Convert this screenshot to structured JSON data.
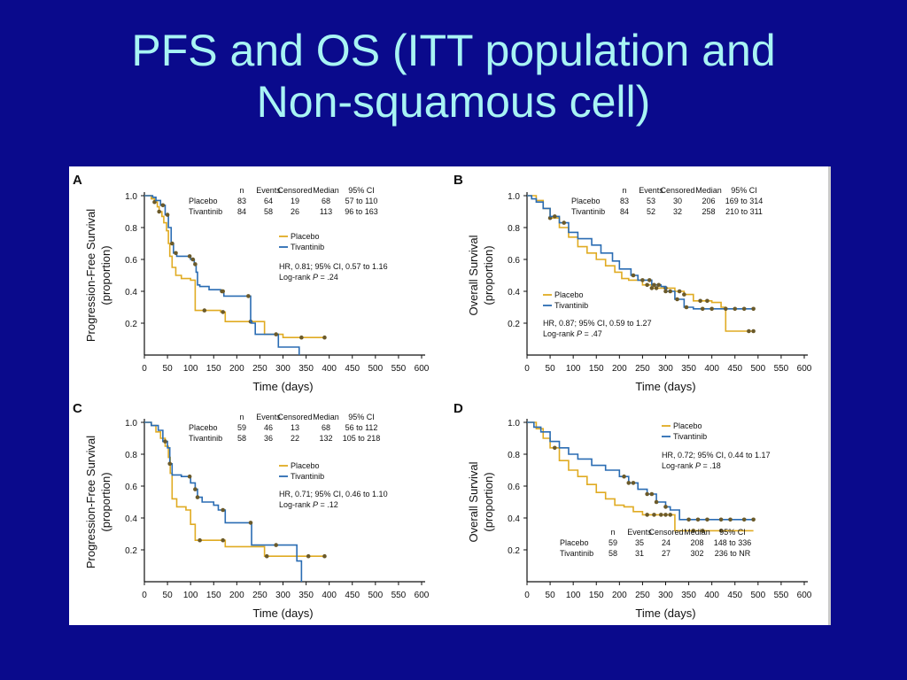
{
  "slide": {
    "title_line1": "PFS and OS (ITT population and",
    "title_line2": "Non-squamous cell)"
  },
  "colors": {
    "placebo": "#e0ab22",
    "tivantinib": "#2a6cb3",
    "censor": "#6b5a2a",
    "background": "#0a0a8c",
    "title": "#a8f4f4"
  },
  "chart_data": [
    {
      "panel": "A",
      "type": "line",
      "xlabel": "Time (days)",
      "ylabel_line1": "Progression-Free Survival",
      "ylabel_line2": "(proportion)",
      "xlim": [
        0,
        600
      ],
      "ylim": [
        0,
        1.0
      ],
      "xticks": [
        "0",
        "50",
        "100",
        "150",
        "200",
        "250",
        "300",
        "350",
        "400",
        "450",
        "500",
        "550",
        "600"
      ],
      "yticks": [
        "0.2",
        "0.4",
        "0.6",
        "0.8",
        "1.0"
      ],
      "table": {
        "columns": [
          "n",
          "Events",
          "Censored",
          "Median",
          "95% CI"
        ],
        "rows": [
          {
            "arm": "Placebo",
            "cells": [
              "83",
              "64",
              "19",
              "68",
              "57 to 110"
            ]
          },
          {
            "arm": "Tivantinib",
            "cells": [
              "84",
              "58",
              "26",
              "113",
              "96 to 163"
            ]
          }
        ]
      },
      "legend": [
        "Placebo",
        "Tivantinib"
      ],
      "hr_line": "HR, 0.81; 95% CI, 0.57 to 1.16",
      "p_prefix": "Log-rank ",
      "p_italic": "P",
      "p_suffix": " = .24",
      "series": [
        {
          "name": "Placebo",
          "color": "#e0ab22",
          "x": [
            0,
            15,
            22,
            28,
            32,
            38,
            42,
            48,
            52,
            55,
            60,
            68,
            80,
            100,
            110,
            130,
            165,
            175,
            215,
            260,
            300,
            320,
            390
          ],
          "y": [
            1.0,
            0.98,
            0.96,
            0.93,
            0.9,
            0.87,
            0.83,
            0.78,
            0.7,
            0.62,
            0.55,
            0.5,
            0.48,
            0.47,
            0.28,
            0.28,
            0.27,
            0.21,
            0.21,
            0.13,
            0.11,
            0.11,
            0.11
          ],
          "censored_x": [
            22,
            32,
            130,
            170,
            230,
            340,
            390
          ]
        },
        {
          "name": "Tivantinib",
          "color": "#2a6cb3",
          "x": [
            0,
            18,
            25,
            35,
            45,
            52,
            58,
            63,
            70,
            90,
            100,
            108,
            112,
            115,
            120,
            140,
            165,
            172,
            185,
            230,
            232,
            240,
            280,
            290,
            335
          ],
          "y": [
            1.0,
            0.99,
            0.97,
            0.94,
            0.88,
            0.8,
            0.7,
            0.64,
            0.62,
            0.62,
            0.6,
            0.57,
            0.52,
            0.44,
            0.43,
            0.41,
            0.4,
            0.37,
            0.37,
            0.21,
            0.2,
            0.13,
            0.13,
            0.05,
            0.0
          ],
          "censored_x": [
            40,
            50,
            60,
            68,
            98,
            105,
            110,
            168,
            170,
            225,
            285
          ]
        }
      ]
    },
    {
      "panel": "B",
      "type": "line",
      "xlabel": "Time (days)",
      "ylabel_line1": "Overall Survival",
      "ylabel_line2": "(proportion)",
      "xlim": [
        0,
        600
      ],
      "ylim": [
        0,
        1.0
      ],
      "xticks": [
        "0",
        "50",
        "100",
        "150",
        "200",
        "250",
        "300",
        "350",
        "400",
        "450",
        "500",
        "550",
        "600"
      ],
      "yticks": [
        "0.2",
        "0.4",
        "0.6",
        "0.8",
        "1.0"
      ],
      "table": {
        "columns": [
          "n",
          "Events",
          "Censored",
          "Median",
          "95% CI"
        ],
        "rows": [
          {
            "arm": "Placebo",
            "cells": [
              "83",
              "53",
              "30",
              "206",
              "169 to 314"
            ]
          },
          {
            "arm": "Tivantinib",
            "cells": [
              "84",
              "52",
              "32",
              "258",
              "210 to 311"
            ]
          }
        ]
      },
      "legend": [
        "Placebo",
        "Tivantinib"
      ],
      "hr_line": "HR, 0.87; 95% CI, 0.59 to 1.27",
      "p_prefix": "Log-rank ",
      "p_italic": "P",
      "p_suffix": " = .47",
      "series": [
        {
          "name": "Placebo",
          "color": "#e0ab22",
          "x": [
            0,
            20,
            35,
            50,
            70,
            90,
            110,
            130,
            150,
            170,
            190,
            205,
            220,
            250,
            270,
            300,
            320,
            340,
            360,
            400,
            420,
            430,
            490
          ],
          "y": [
            1.0,
            0.97,
            0.92,
            0.86,
            0.8,
            0.74,
            0.68,
            0.64,
            0.6,
            0.56,
            0.52,
            0.48,
            0.47,
            0.44,
            0.42,
            0.42,
            0.4,
            0.38,
            0.34,
            0.33,
            0.3,
            0.15,
            0.15
          ],
          "censored_x": [
            50,
            260,
            270,
            280,
            300,
            330,
            340,
            375,
            390,
            480,
            490
          ]
        },
        {
          "name": "Tivantinib",
          "color": "#2a6cb3",
          "x": [
            0,
            10,
            20,
            35,
            50,
            70,
            90,
            110,
            140,
            160,
            185,
            200,
            225,
            240,
            270,
            290,
            300,
            320,
            340,
            360,
            400,
            430,
            490
          ],
          "y": [
            1.0,
            0.98,
            0.96,
            0.92,
            0.87,
            0.83,
            0.77,
            0.73,
            0.69,
            0.64,
            0.59,
            0.54,
            0.5,
            0.47,
            0.44,
            0.43,
            0.4,
            0.35,
            0.3,
            0.29,
            0.29,
            0.29,
            0.29
          ],
          "censored_x": [
            60,
            80,
            230,
            250,
            265,
            275,
            285,
            300,
            310,
            325,
            345,
            380,
            400,
            430,
            450,
            470,
            490
          ]
        }
      ]
    },
    {
      "panel": "C",
      "type": "line",
      "xlabel": "Time (days)",
      "ylabel_line1": "Progression-Free Survival",
      "ylabel_line2": "(proportion)",
      "xlim": [
        0,
        600
      ],
      "ylim": [
        0,
        1.0
      ],
      "xticks": [
        "0",
        "50",
        "100",
        "150",
        "200",
        "250",
        "300",
        "350",
        "400",
        "450",
        "500",
        "550",
        "600"
      ],
      "yticks": [
        "0.2",
        "0.4",
        "0.6",
        "0.8",
        "1.0"
      ],
      "table": {
        "columns": [
          "n",
          "Events",
          "Censored",
          "Median",
          "95% CI"
        ],
        "rows": [
          {
            "arm": "Placebo",
            "cells": [
              "59",
              "46",
              "13",
              "68",
              "56 to 112"
            ]
          },
          {
            "arm": "Tivantinib",
            "cells": [
              "58",
              "36",
              "22",
              "132",
              "105 to 218"
            ]
          }
        ]
      },
      "legend": [
        "Placebo",
        "Tivantinib"
      ],
      "hr_line": "HR, 0.71; 95% CI, 0.46 to 1.10",
      "p_prefix": "Log-rank ",
      "p_italic": "P",
      "p_suffix": " = .12",
      "series": [
        {
          "name": "Placebo",
          "color": "#e0ab22",
          "x": [
            0,
            15,
            25,
            35,
            45,
            52,
            56,
            60,
            70,
            90,
            100,
            110,
            120,
            165,
            175,
            230,
            260,
            300,
            320,
            390
          ],
          "y": [
            1.0,
            0.98,
            0.94,
            0.9,
            0.85,
            0.78,
            0.68,
            0.52,
            0.47,
            0.45,
            0.36,
            0.26,
            0.26,
            0.26,
            0.22,
            0.22,
            0.16,
            0.16,
            0.16,
            0.16
          ],
          "censored_x": [
            120,
            170,
            265,
            355,
            390
          ]
        },
        {
          "name": "Tivantinib",
          "color": "#2a6cb3",
          "x": [
            0,
            15,
            30,
            40,
            50,
            55,
            60,
            80,
            100,
            110,
            115,
            125,
            150,
            160,
            175,
            190,
            225,
            232,
            300,
            330,
            340
          ],
          "y": [
            1.0,
            0.98,
            0.95,
            0.88,
            0.84,
            0.74,
            0.67,
            0.66,
            0.62,
            0.58,
            0.53,
            0.5,
            0.48,
            0.45,
            0.37,
            0.37,
            0.37,
            0.23,
            0.23,
            0.13,
            0.0
          ],
          "censored_x": [
            45,
            55,
            98,
            110,
            115,
            170,
            230,
            285
          ]
        }
      ]
    },
    {
      "panel": "D",
      "type": "line",
      "xlabel": "Time (days)",
      "ylabel_line1": "Overall Survival",
      "ylabel_line2": "(proportion)",
      "xlim": [
        0,
        600
      ],
      "ylim": [
        0,
        1.0
      ],
      "xticks": [
        "0",
        "50",
        "100",
        "150",
        "200",
        "250",
        "300",
        "350",
        "400",
        "450",
        "500",
        "550",
        "600"
      ],
      "yticks": [
        "0.2",
        "0.4",
        "0.6",
        "0.8",
        "1.0"
      ],
      "table": {
        "columns": [
          "n",
          "Events",
          "Censored",
          "Median",
          "95% CI"
        ],
        "rows": [
          {
            "arm": "Placebo",
            "cells": [
              "59",
              "35",
              "24",
              "208",
              "148 to 336"
            ]
          },
          {
            "arm": "Tivantinib",
            "cells": [
              "58",
              "31",
              "27",
              "302",
              "236 to NR"
            ]
          }
        ]
      },
      "legend": [
        "Placebo",
        "Tivantinib"
      ],
      "hr_line": "HR, 0.72; 95% CI, 0.44 to 1.17",
      "p_prefix": "Log-rank ",
      "p_italic": "P",
      "p_suffix": " = .18",
      "series": [
        {
          "name": "Placebo",
          "color": "#e0ab22",
          "x": [
            0,
            20,
            35,
            50,
            70,
            90,
            110,
            130,
            150,
            170,
            190,
            210,
            230,
            250,
            290,
            320,
            340,
            420,
            490
          ],
          "y": [
            1.0,
            0.96,
            0.9,
            0.84,
            0.76,
            0.7,
            0.66,
            0.61,
            0.56,
            0.52,
            0.48,
            0.47,
            0.44,
            0.42,
            0.42,
            0.32,
            0.32,
            0.32,
            0.32
          ],
          "censored_x": [
            60,
            260,
            275,
            290,
            300,
            310,
            360,
            380,
            420
          ]
        },
        {
          "name": "Tivantinib",
          "color": "#2a6cb3",
          "x": [
            0,
            15,
            30,
            50,
            70,
            90,
            110,
            140,
            170,
            200,
            220,
            240,
            260,
            280,
            300,
            310,
            330,
            380,
            490
          ],
          "y": [
            1.0,
            0.97,
            0.94,
            0.88,
            0.84,
            0.8,
            0.77,
            0.73,
            0.7,
            0.66,
            0.62,
            0.58,
            0.55,
            0.5,
            0.47,
            0.45,
            0.39,
            0.39,
            0.39
          ],
          "censored_x": [
            210,
            220,
            230,
            260,
            270,
            280,
            300,
            350,
            370,
            390,
            420,
            440,
            470,
            490
          ]
        }
      ]
    }
  ]
}
